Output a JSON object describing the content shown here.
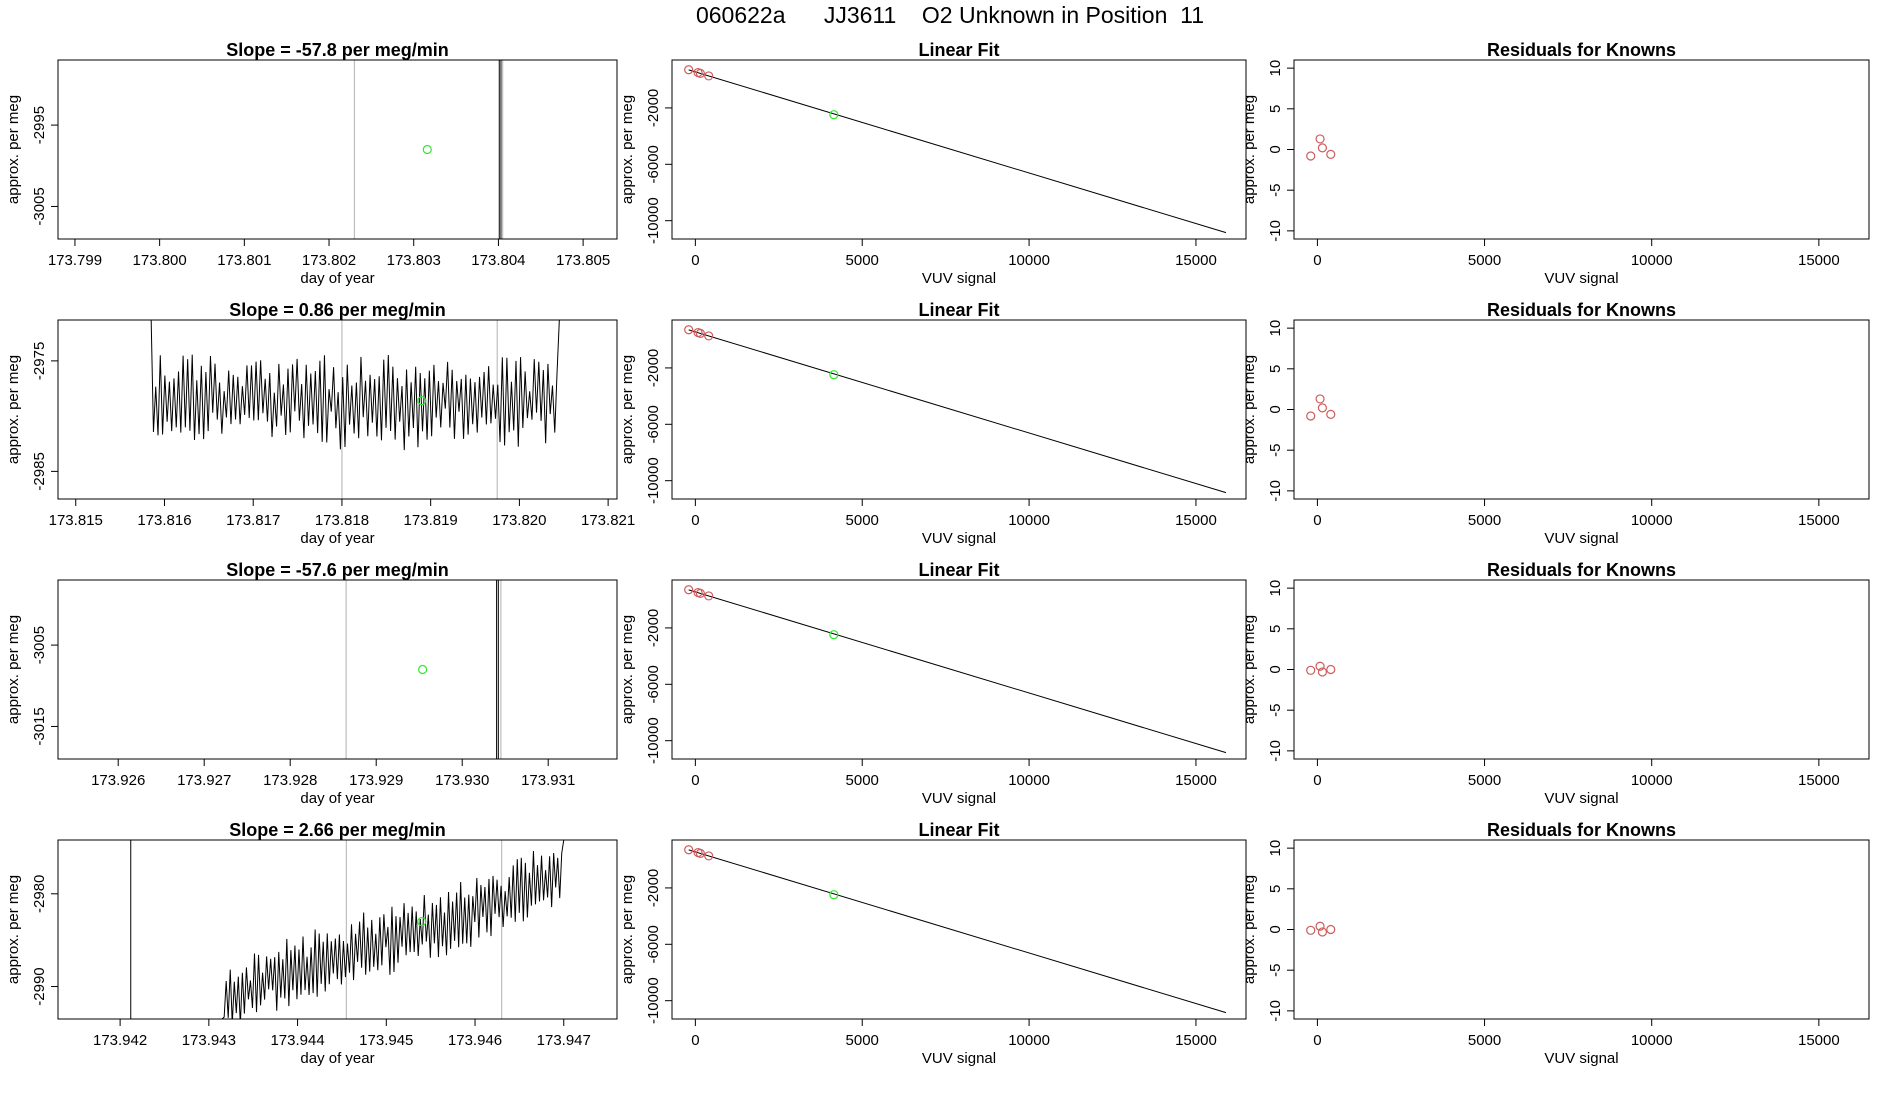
{
  "header": {
    "run_id": "060622a",
    "tank": "JJ3611",
    "description": "O2 Unknown in Position",
    "position": "11"
  },
  "colors": {
    "known": "#cd5c5c",
    "unknown": "#32e632",
    "line": "#000000",
    "vline": "#bebebe"
  },
  "chart_data": [
    {
      "type": "line",
      "panel": "slope",
      "row": 1,
      "title": "Slope =  -57.8  per meg/min",
      "xlabel": "day of year",
      "ylabel": "approx. per meg",
      "xlim": [
        173.7988,
        173.8054
      ],
      "ylim": [
        -3009,
        -2987
      ],
      "xticks": [
        173.799,
        173.8,
        173.801,
        173.802,
        173.803,
        173.804,
        173.805
      ],
      "xtick_labels": [
        "173.799",
        "173.800",
        "173.801",
        "173.802",
        "173.803",
        "173.804",
        "173.805"
      ],
      "yticks": [
        -3005,
        -2995
      ],
      "ytick_labels": [
        "-3005",
        "-2995"
      ],
      "gray_vlines": [
        173.8023,
        173.80405
      ],
      "black_vlines": [
        173.80401,
        173.80403
      ],
      "series": [],
      "unknown_point": [
        173.80316,
        -2998
      ]
    },
    {
      "type": "line",
      "panel": "slope",
      "row": 2,
      "title": "Slope =  0.86  per meg/min",
      "xlabel": "day of year",
      "ylabel": "approx. per meg",
      "xlim": [
        173.8148,
        173.8211
      ],
      "ylim": [
        -2987.5,
        -2971.3
      ],
      "xticks": [
        173.815,
        173.816,
        173.817,
        173.818,
        173.819,
        173.82,
        173.821
      ],
      "xtick_labels": [
        "173.815",
        "173.816",
        "173.817",
        "173.818",
        "173.819",
        "173.820",
        "173.821"
      ],
      "yticks": [
        -2985,
        -2975
      ],
      "ytick_labels": [
        "-2985",
        "-2975"
      ],
      "gray_vlines": [
        173.818,
        173.81975
      ],
      "black_vlines": [],
      "series": [
        {
          "name": "trace",
          "x_start": 173.81585,
          "x_end": 173.82045,
          "n": 180,
          "mean": -2978.6,
          "amp": 3.4,
          "start_value": -2971.3,
          "end_value": -2971.3
        }
      ],
      "unknown_point": [
        173.8189,
        -2978.6
      ]
    },
    {
      "type": "line",
      "panel": "slope",
      "row": 3,
      "title": "Slope =  -57.6  per meg/min",
      "xlabel": "day of year",
      "ylabel": "approx. per meg",
      "xlim": [
        173.9253,
        173.9318
      ],
      "ylim": [
        -3019,
        -2997
      ],
      "xticks": [
        173.926,
        173.927,
        173.928,
        173.929,
        173.93,
        173.931
      ],
      "xtick_labels": [
        "173.926",
        "173.927",
        "173.928",
        "173.929",
        "173.930",
        "173.931"
      ],
      "yticks": [
        -3015,
        -3005
      ],
      "ytick_labels": [
        "-3015",
        "-3005"
      ],
      "gray_vlines": [
        173.92865,
        173.93045
      ],
      "black_vlines": [
        173.9304,
        173.93042
      ],
      "series": [],
      "unknown_point": [
        173.92954,
        -3008
      ]
    },
    {
      "type": "line",
      "panel": "slope",
      "row": 4,
      "title": "Slope =  2.66  per meg/min",
      "xlabel": "day of year",
      "ylabel": "approx. per meg",
      "xlim": [
        173.9413,
        173.9476
      ],
      "ylim": [
        -2993.5,
        -2974.2
      ],
      "xticks": [
        173.942,
        173.943,
        173.944,
        173.945,
        173.946,
        173.947
      ],
      "xtick_labels": [
        "173.942",
        "173.943",
        "173.944",
        "173.945",
        "173.946",
        "173.947"
      ],
      "yticks": [
        -2990,
        -2980
      ],
      "ytick_labels": [
        "-2990",
        "-2980"
      ],
      "gray_vlines": [
        173.94455,
        173.9463
      ],
      "black_vlines": [],
      "series": [
        {
          "name": "trace",
          "x_start": 173.94315,
          "x_end": 173.947,
          "n": 170,
          "trend_from": -2991.5,
          "trend_to": -2978.0,
          "amp": 3.0,
          "start_value": -2993.5,
          "end_value": -2974.2
        },
        {
          "name": "spike",
          "x": [
            173.94212,
            173.94212
          ],
          "y": [
            -2974.2,
            -2993.5
          ]
        }
      ],
      "unknown_point": [
        173.9454,
        -2983
      ]
    },
    {
      "type": "scatter",
      "panel": "fit",
      "rows": [
        1,
        2,
        3,
        4
      ],
      "title": "Linear Fit",
      "xlabel": "VUV signal",
      "ylabel": "approx. per meg",
      "xlim": [
        -700,
        16500
      ],
      "ylim": [
        -11300,
        1400
      ],
      "xticks": [
        0,
        5000,
        10000,
        15000
      ],
      "xtick_labels": [
        "0",
        "5000",
        "10000",
        "15000"
      ],
      "yticks": [
        -10000,
        -6000,
        -2000
      ],
      "ytick_labels": [
        "-10000",
        "-6000",
        "-2000"
      ],
      "fit_line": {
        "x": [
          -200,
          15900
        ],
        "y": [
          700,
          -10850
        ]
      },
      "known_points": {
        "x": [
          -200,
          80,
          150,
          400
        ],
        "y": [
          710,
          510,
          450,
          270
        ]
      },
      "unknown_point": {
        "x": 4150,
        "y": -2480
      }
    },
    {
      "type": "scatter",
      "panel": "residuals",
      "rows": [
        1,
        2
      ],
      "title": "Residuals for Knowns",
      "xlabel": "VUV signal",
      "ylabel": "approx. per meg",
      "xlim": [
        -700,
        16500
      ],
      "ylim": [
        -11,
        11
      ],
      "xticks": [
        0,
        5000,
        10000,
        15000
      ],
      "xtick_labels": [
        "0",
        "5000",
        "10000",
        "15000"
      ],
      "yticks": [
        -10,
        -5,
        0,
        5,
        10
      ],
      "ytick_labels": [
        "-10",
        "-5",
        "0",
        "5",
        "10"
      ],
      "x": [
        -200,
        80,
        150,
        400
      ],
      "y": [
        -0.8,
        1.3,
        0.2,
        -0.6
      ]
    },
    {
      "type": "scatter",
      "panel": "residuals",
      "rows": [
        3,
        4
      ],
      "title": "Residuals for Knowns",
      "xlabel": "VUV signal",
      "ylabel": "approx. per meg",
      "xlim": [
        -700,
        16500
      ],
      "ylim": [
        -11,
        11
      ],
      "xticks": [
        0,
        5000,
        10000,
        15000
      ],
      "xtick_labels": [
        "0",
        "5000",
        "10000",
        "15000"
      ],
      "yticks": [
        -10,
        -5,
        0,
        5,
        10
      ],
      "ytick_labels": [
        "-10",
        "-5",
        "0",
        "5",
        "10"
      ],
      "x": [
        -200,
        80,
        150,
        400
      ],
      "y": [
        -0.1,
        0.4,
        -0.3,
        0.0
      ]
    }
  ]
}
